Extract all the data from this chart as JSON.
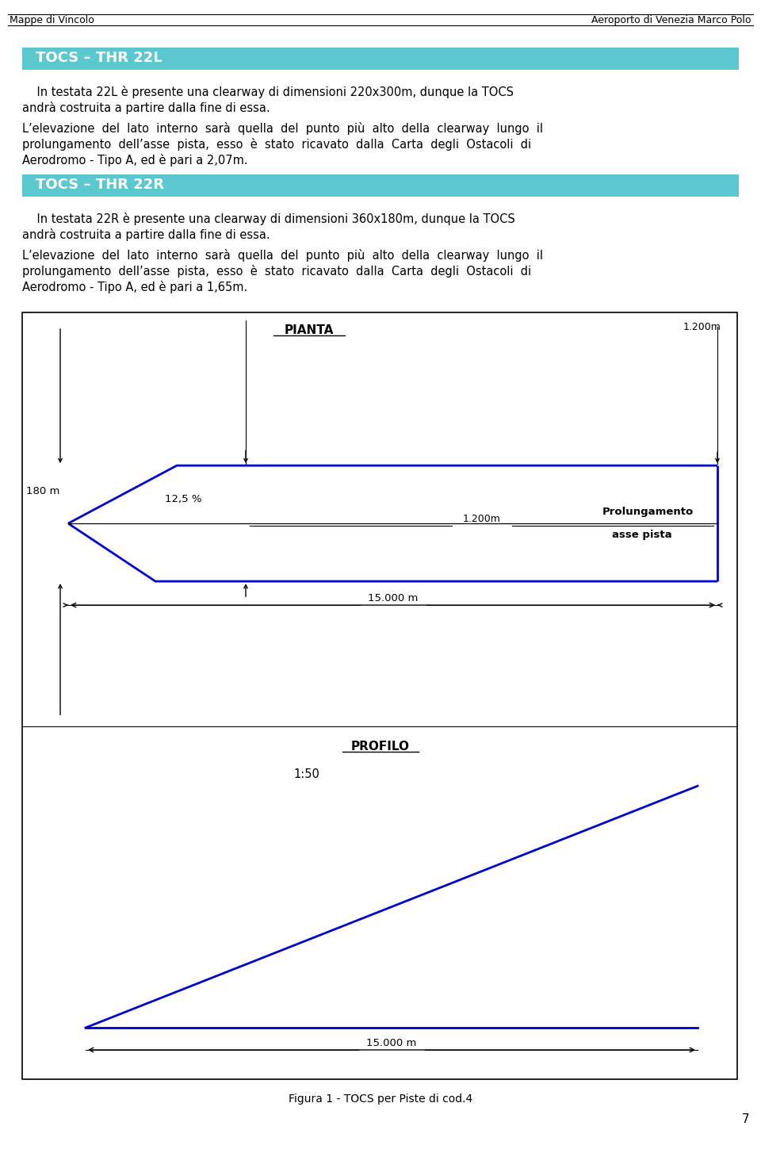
{
  "header_left": "Mappe di Vincolo",
  "header_right": "Aeroporto di Venezia Marco Polo",
  "thr22l_title": "TOCS – THR 22L",
  "thr22r_title": "TOCS – THR 22R",
  "fig_caption": "Figura 1 - TOCS per Piste di cod.4",
  "page_number": "7",
  "header_bg_color": "#5BC8D0",
  "header_text_color": "#FFFFFF",
  "blue_line_color": "#0000CC",
  "black_color": "#000000",
  "bg_color": "#FFFFFF",
  "p1l1": "    In testata 22L è presente una clearway di dimensioni 220x300m, dunque la TOCS",
  "p1l2": "andrà costruita a partire dalla fine di essa.",
  "p2l1": "L’elevazione  del  lato  interno  sarà  quella  del  punto  più  alto  della  clearway  lungo  il",
  "p2l2": "prolungamento  dell’asse  pista,  esso  è  stato  ricavato  dalla  Carta  degli  Ostacoli  di",
  "p2l3": "Aerodromo - Tipo A, ed è pari a 2,07m.",
  "p3l1": "    In testata 22R è presente una clearway di dimensioni 360x180m, dunque la TOCS",
  "p3l2": "andrà costruita a partire dalla fine di essa.",
  "p4l1": "L’elevazione  del  lato  interno  sarà  quella  del  punto  più  alto  della  clearway  lungo  il",
  "p4l2": "prolungamento  dell’asse  pista,  esso  è  stato  ricavato  dalla  Carta  degli  Ostacoli  di",
  "p4l3": "Aerodromo - Tipo A, ed è pari a 1,65m.",
  "pianta_label": "PIANTA",
  "profilo_label": "PROFILO",
  "label_1200m_top": "1.200m",
  "label_180m": "180 m",
  "label_125pct": "12,5 %",
  "label_1200m_dim": "1.200m",
  "label_prol1": "Prolungamento",
  "label_prol2": "asse pista",
  "label_15000_pianta": "15.000 m",
  "label_150": "1:50",
  "label_15000_profilo": "15.000 m"
}
